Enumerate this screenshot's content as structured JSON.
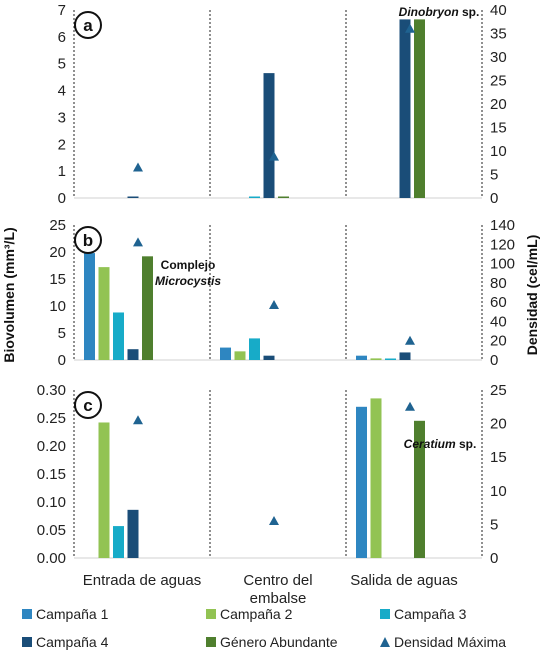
{
  "chart_data": {
    "type": "bar",
    "categories": [
      "Entrada de aguas",
      "Centro del embalse",
      "Salida de aguas"
    ],
    "ylabel_left": "Biovolumen (mm³/L)",
    "ylabel_right": "Densidad (cel/mL)",
    "series_styles": [
      {
        "name": "Campaña 1",
        "color": "#2E86C1",
        "marker": "square"
      },
      {
        "name": "Campaña 2",
        "color": "#92C353",
        "marker": "square"
      },
      {
        "name": "Campaña 3",
        "color": "#17ABC8",
        "marker": "square"
      },
      {
        "name": "Campaña 4",
        "color": "#1A4D78",
        "marker": "square"
      },
      {
        "name": "Género Abundante",
        "color": "#4F7F2E",
        "marker": "square"
      },
      {
        "name": "Densidad Máxima",
        "color": "#1F6391",
        "marker": "triangle"
      }
    ],
    "panels": [
      {
        "letter": "a",
        "ylim_left": [
          0,
          7
        ],
        "yticks_left": [
          "0",
          "1",
          "2",
          "3",
          "4",
          "5",
          "6",
          "7"
        ],
        "ylim_right": [
          0,
          40
        ],
        "yticks_right": [
          "0",
          "5",
          "10",
          "15",
          "20",
          "25",
          "30",
          "35",
          "40"
        ],
        "biovolume": [
          [
            0,
            0,
            0,
            0.05,
            0
          ],
          [
            0,
            0,
            0.03,
            4.65,
            0.03
          ],
          [
            0,
            0,
            0,
            6.65,
            6.65
          ]
        ],
        "density_max": [
          6.5,
          8.8,
          36.0
        ],
        "annotation": {
          "category": "Salida de aguas",
          "parts": [
            {
              "text": "Dinobryon",
              "italic": true
            },
            {
              "text": " sp.",
              "italic": false
            }
          ]
        }
      },
      {
        "letter": "b",
        "ylim_left": [
          0,
          25
        ],
        "yticks_left": [
          "0",
          "5",
          "10",
          "15",
          "20",
          "25"
        ],
        "ylim_right": [
          0,
          140
        ],
        "yticks_right": [
          "0",
          "20",
          "40",
          "60",
          "80",
          "100",
          "120",
          "140"
        ],
        "biovolume": [
          [
            19.8,
            17.2,
            8.8,
            2.0,
            19.2
          ],
          [
            2.3,
            1.6,
            4.0,
            0.8,
            0
          ],
          [
            0.8,
            0.3,
            0.2,
            1.4,
            0
          ]
        ],
        "density_max": [
          122,
          57,
          20
        ],
        "annotation": {
          "category": "Entrada de aguas",
          "lines": [
            [
              {
                "text": "Complejo",
                "italic": false
              }
            ],
            [
              {
                "text": "Microcystis",
                "italic": true
              }
            ]
          ]
        }
      },
      {
        "letter": "c",
        "ylim_left": [
          0,
          0.3
        ],
        "yticks_left": [
          "0.00",
          "0.05",
          "0.10",
          "0.15",
          "0.20",
          "0.25",
          "0.30"
        ],
        "ylim_right": [
          0,
          25
        ],
        "yticks_right": [
          "0",
          "5",
          "10",
          "15",
          "20",
          "25"
        ],
        "biovolume": [
          [
            0,
            0.242,
            0.057,
            0.086,
            0
          ],
          [
            0,
            0,
            0,
            0,
            0
          ],
          [
            0.27,
            0.285,
            0,
            0,
            0.245
          ]
        ],
        "density_max": [
          20.5,
          5.5,
          22.5
        ],
        "annotation": {
          "category": "Salida de aguas",
          "parts": [
            {
              "text": "Ceratium",
              "italic": true
            },
            {
              "text": " sp.",
              "italic": false
            }
          ]
        }
      }
    ],
    "legend": [
      "Campaña 1",
      "Campaña 2",
      "Campaña 3",
      "Campaña 4",
      "Género Abundante",
      "Densidad Máxima"
    ],
    "grid": false,
    "legend_position": "bottom"
  }
}
